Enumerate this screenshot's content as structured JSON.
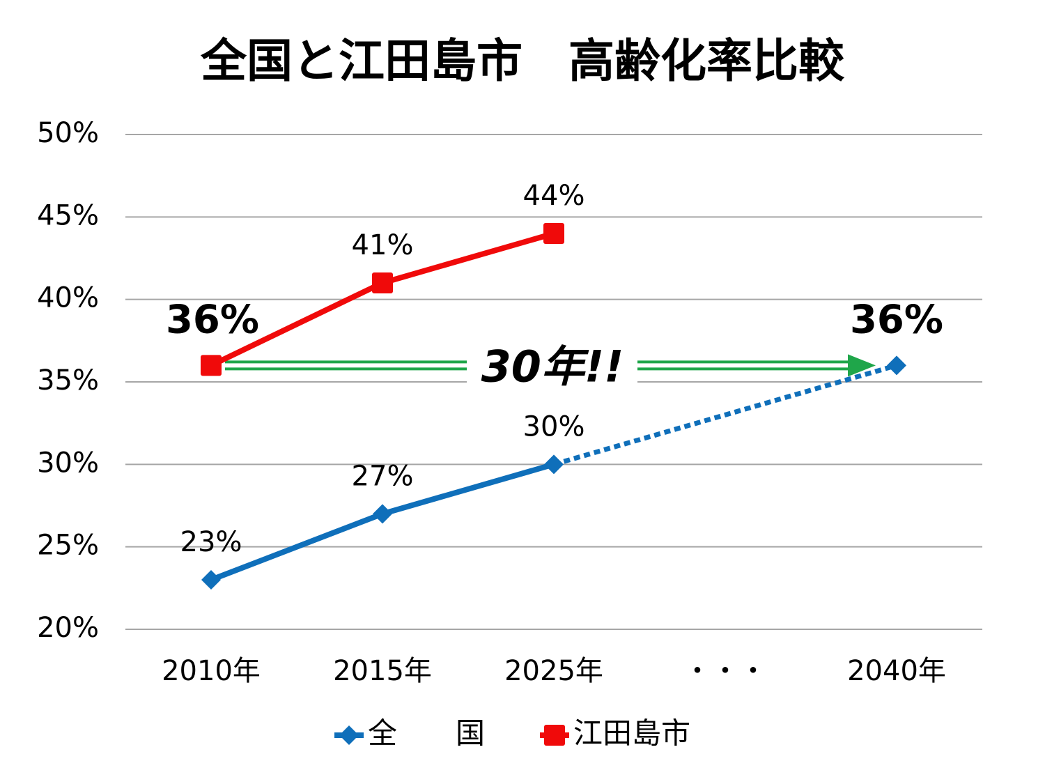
{
  "chart_data": {
    "type": "line",
    "title": "全国と江田島市　高齢化率比較",
    "categories": [
      "2010年",
      "2015年",
      "2025年",
      "・・・",
      "2040年"
    ],
    "series": [
      {
        "name": "全　　国",
        "color": "#0f6fba",
        "marker": "diamond",
        "values": [
          23,
          27,
          30,
          null,
          36
        ],
        "value_labels": [
          "23%",
          "27%",
          "30%",
          null,
          "36%"
        ]
      },
      {
        "name": "江田島市",
        "color": "#f00a0a",
        "marker": "square",
        "values": [
          36,
          41,
          44,
          null,
          null
        ],
        "value_labels": [
          "36%",
          "41%",
          "44%",
          null,
          null
        ]
      }
    ],
    "ylim": [
      20,
      50
    ],
    "yticks": [
      {
        "value": 20,
        "label": "20%"
      },
      {
        "value": 25,
        "label": "25%"
      },
      {
        "value": 30,
        "label": "30%"
      },
      {
        "value": 35,
        "label": "35%"
      },
      {
        "value": 40,
        "label": "40%"
      },
      {
        "value": 45,
        "label": "45%"
      },
      {
        "value": 50,
        "label": "50%"
      }
    ],
    "grid": true,
    "annotation": {
      "text": "30年!!",
      "color": "#1fa64a"
    },
    "legend": "bottom"
  }
}
